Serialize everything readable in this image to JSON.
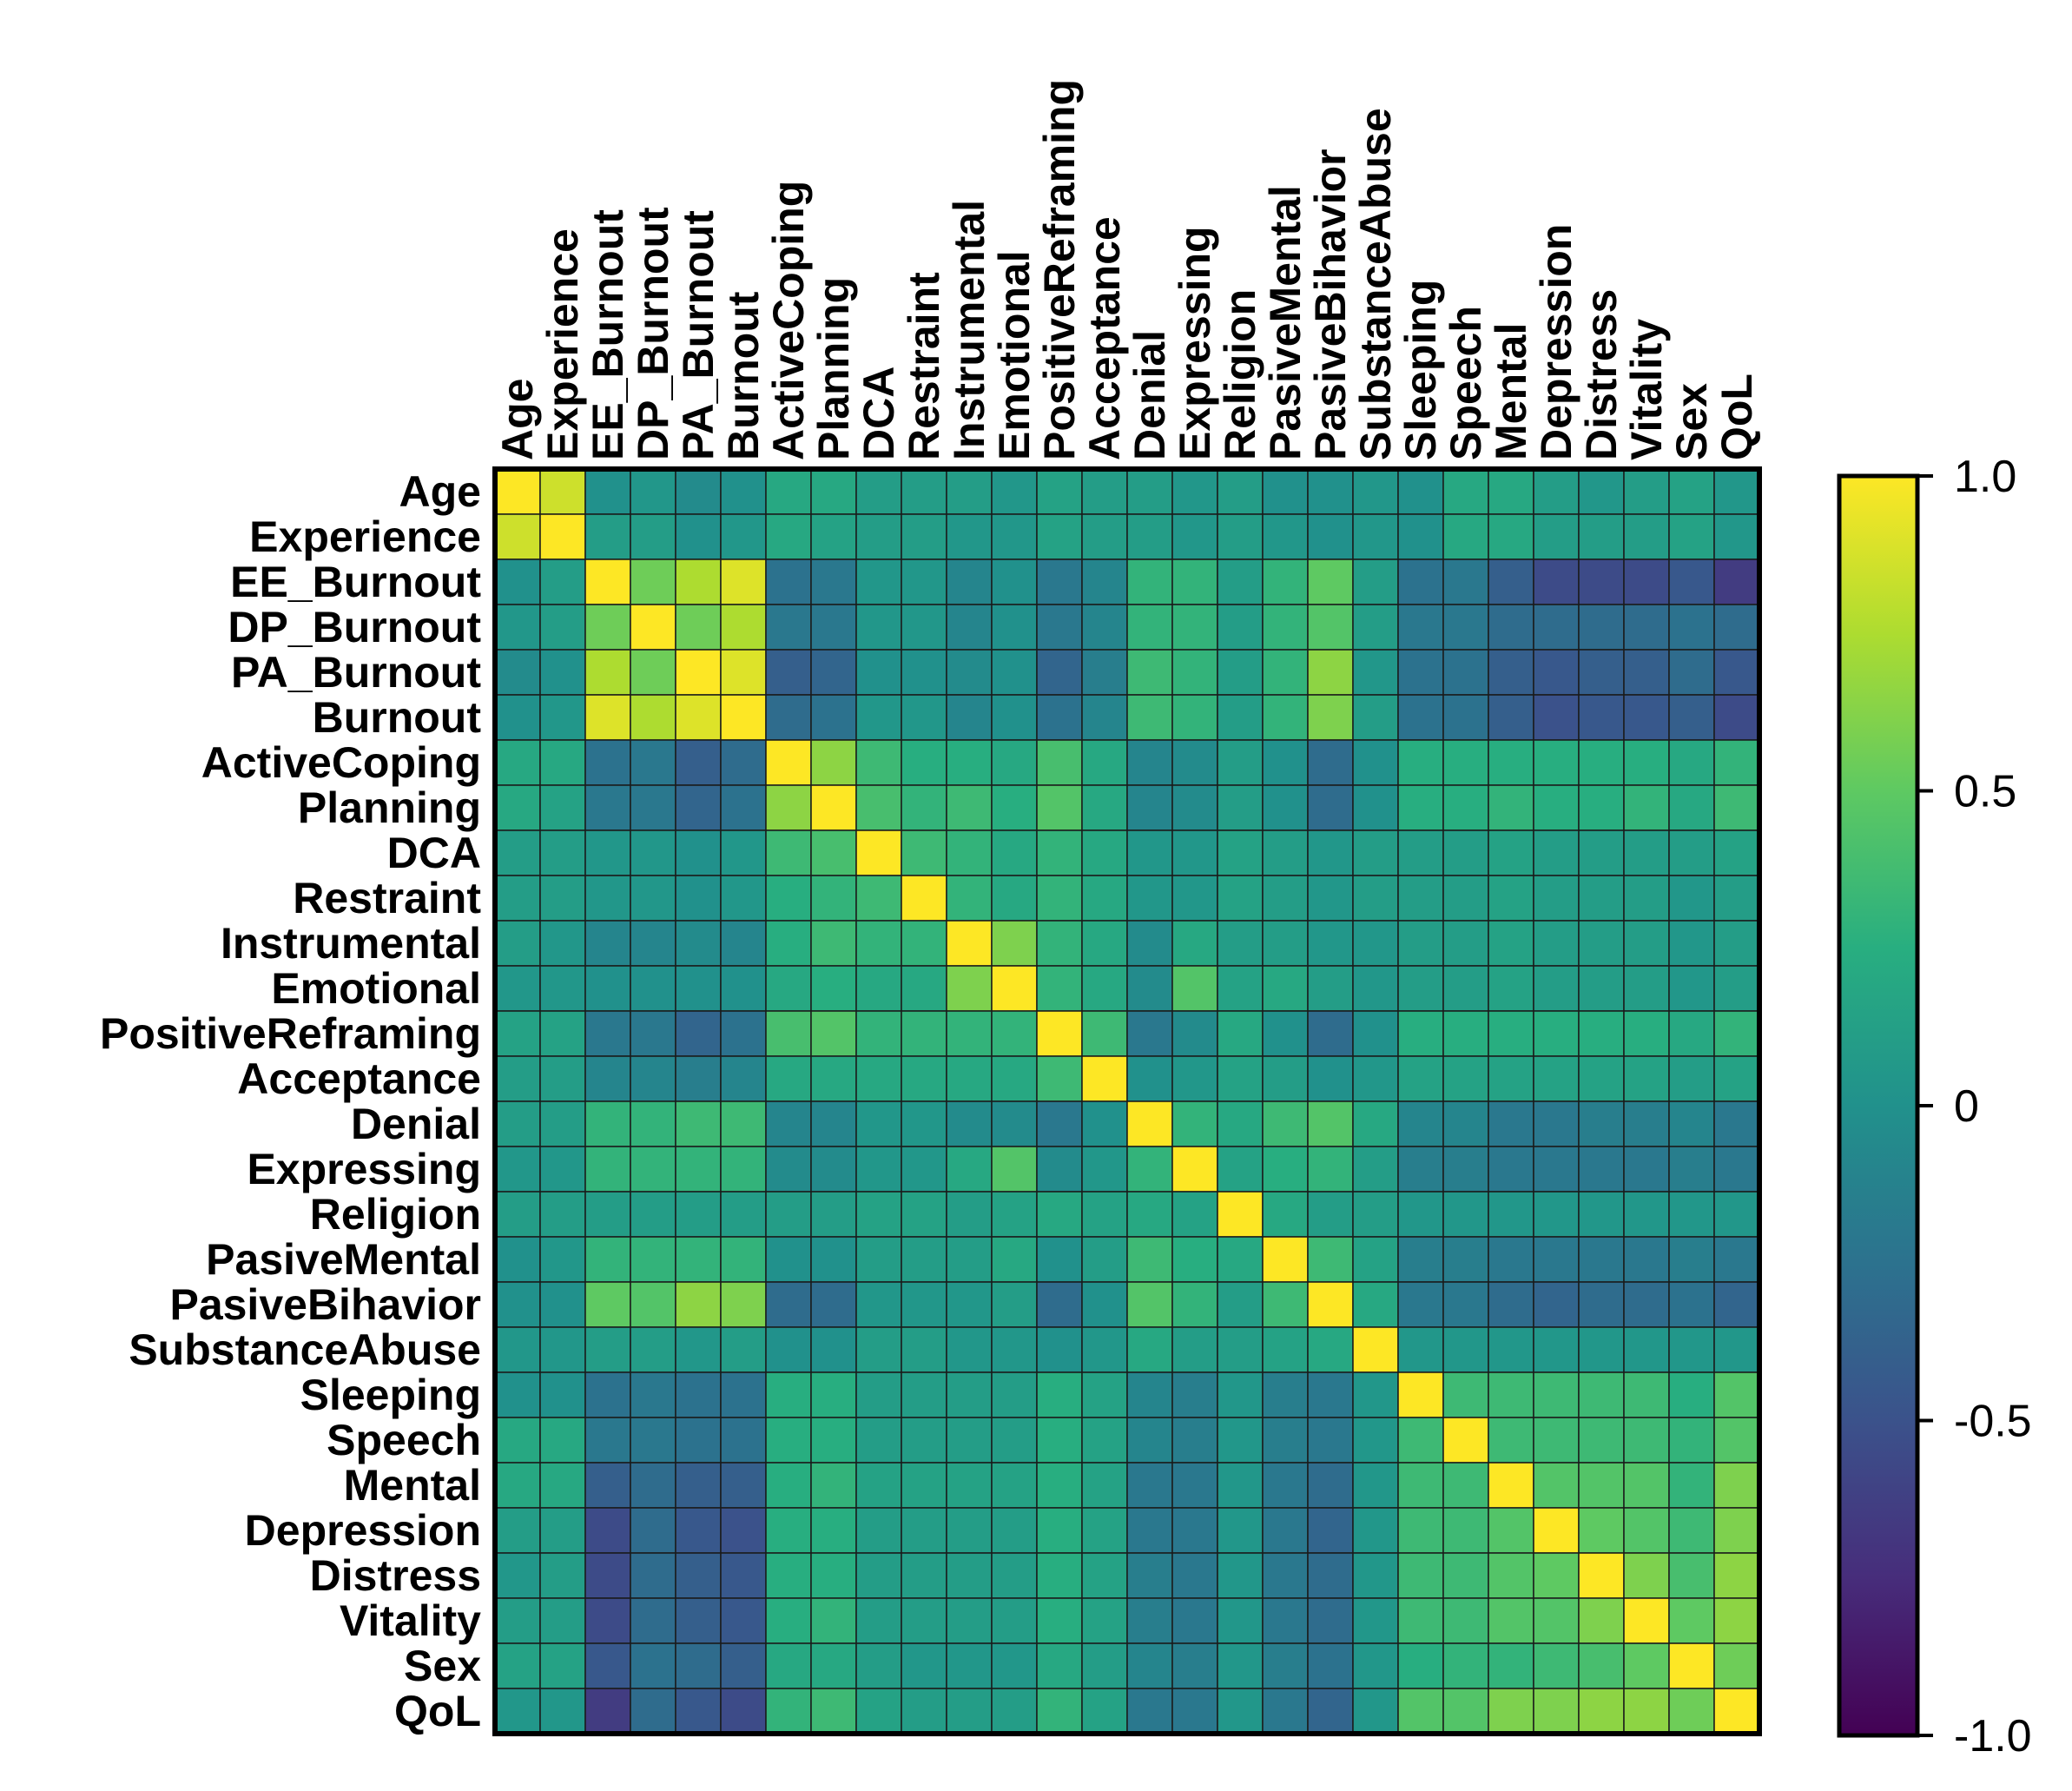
{
  "chart_data": {
    "type": "heatmap",
    "title": "",
    "labels": [
      "Age",
      "Experience",
      "EE_Burnout",
      "DP_Burnout",
      "PA_Burnout",
      "Burnout",
      "ActiveCoping",
      "Planning",
      "DCA",
      "Restraint",
      "Instrumental",
      "Emotional",
      "PositiveReframing",
      "Acceptance",
      "Denial",
      "Expressing",
      "Religion",
      "PasiveMental",
      "PasiveBihavior",
      "SubstanceAbuse",
      "Sleeping",
      "Speech",
      "Mental",
      "Depression",
      "Distress",
      "Vitality",
      "Sex",
      "QoL"
    ],
    "colorbar": {
      "min": -1.0,
      "max": 1.0,
      "ticks": [
        1.0,
        0.5,
        0,
        -0.5,
        -1.0
      ],
      "tick_labels": [
        "1.0",
        "0.5",
        "0",
        "-0.5",
        "-1.0"
      ]
    },
    "matrix": [
      [
        1,
        0.85,
        0,
        0.05,
        -0.05,
        0,
        0.2,
        0.2,
        0.1,
        0.1,
        0.1,
        0.05,
        0.15,
        0.1,
        0.1,
        0.05,
        0.1,
        0,
        0,
        0.05,
        0,
        0.2,
        0.2,
        0.1,
        0.05,
        0.1,
        0.15,
        0.05
      ],
      [
        0.85,
        1,
        0.1,
        0.1,
        0,
        0.05,
        0.2,
        0.15,
        0.1,
        0.1,
        0.05,
        0.05,
        0.15,
        0.1,
        0.1,
        0.05,
        0.1,
        0.05,
        0,
        0.05,
        0,
        0.2,
        0.2,
        0.1,
        0.1,
        0.1,
        0.15,
        0.05
      ],
      [
        0,
        0.1,
        1,
        0.55,
        0.75,
        0.9,
        -0.25,
        -0.2,
        0.05,
        0.05,
        -0.1,
        0,
        -0.2,
        -0.1,
        0.3,
        0.3,
        0.1,
        0.3,
        0.5,
        0.1,
        -0.25,
        -0.2,
        -0.4,
        -0.55,
        -0.55,
        -0.55,
        -0.45,
        -0.65
      ],
      [
        0.05,
        0.1,
        0.55,
        1,
        0.55,
        0.75,
        -0.2,
        -0.2,
        0.05,
        0.05,
        -0.1,
        0,
        -0.2,
        -0.1,
        0.3,
        0.3,
        0.1,
        0.3,
        0.45,
        0.1,
        -0.2,
        -0.2,
        -0.3,
        -0.3,
        -0.3,
        -0.3,
        -0.25,
        -0.3
      ],
      [
        -0.05,
        0,
        0.75,
        0.55,
        1,
        0.9,
        -0.4,
        -0.35,
        0,
        0,
        -0.05,
        0,
        -0.35,
        -0.15,
        0.35,
        0.3,
        0.1,
        0.3,
        0.65,
        0.05,
        -0.25,
        -0.25,
        -0.4,
        -0.45,
        -0.4,
        -0.4,
        -0.3,
        -0.45
      ],
      [
        0,
        0.05,
        0.9,
        0.75,
        0.9,
        1,
        -0.3,
        -0.25,
        0.05,
        0.05,
        -0.1,
        0,
        -0.25,
        -0.1,
        0.35,
        0.3,
        0.1,
        0.3,
        0.6,
        0.1,
        -0.25,
        -0.25,
        -0.4,
        -0.5,
        -0.45,
        -0.45,
        -0.4,
        -0.55
      ],
      [
        0.2,
        0.2,
        -0.25,
        -0.2,
        -0.4,
        -0.3,
        1,
        0.65,
        0.35,
        0.25,
        0.25,
        0.2,
        0.4,
        0.2,
        -0.1,
        -0.05,
        0.1,
        0,
        -0.3,
        0,
        0.25,
        0.25,
        0.25,
        0.25,
        0.25,
        0.25,
        0.2,
        0.3
      ],
      [
        0.2,
        0.15,
        -0.2,
        -0.2,
        -0.35,
        -0.25,
        0.65,
        1,
        0.4,
        0.3,
        0.35,
        0.25,
        0.45,
        0.2,
        -0.1,
        -0.05,
        0.1,
        0,
        -0.3,
        0,
        0.25,
        0.25,
        0.3,
        0.25,
        0.25,
        0.3,
        0.2,
        0.35
      ],
      [
        0.1,
        0.1,
        0.05,
        0.05,
        0,
        0.05,
        0.35,
        0.4,
        1,
        0.35,
        0.3,
        0.2,
        0.3,
        0.2,
        0.05,
        0.05,
        0.15,
        0.1,
        0.05,
        0.1,
        0.1,
        0.1,
        0.15,
        0.1,
        0.1,
        0.1,
        0.1,
        0.15
      ],
      [
        0.1,
        0.1,
        0.05,
        0.05,
        0,
        0.05,
        0.25,
        0.3,
        0.35,
        1,
        0.3,
        0.2,
        0.3,
        0.2,
        0.05,
        0.05,
        0.15,
        0.1,
        0.05,
        0.1,
        0.1,
        0.1,
        0.15,
        0.1,
        0.1,
        0.1,
        0.05,
        0.1
      ],
      [
        0.1,
        0.05,
        -0.1,
        -0.1,
        -0.05,
        -0.1,
        0.25,
        0.35,
        0.3,
        0.3,
        1,
        0.6,
        0.3,
        0.2,
        -0.05,
        0.2,
        0.1,
        0.1,
        0.05,
        0.05,
        0.1,
        0.1,
        0.15,
        0.1,
        0.1,
        0.1,
        0.05,
        0.1
      ],
      [
        0.05,
        0.05,
        0,
        0,
        0,
        0,
        0.2,
        0.25,
        0.2,
        0.2,
        0.6,
        1,
        0.3,
        0.2,
        -0.05,
        0.45,
        0.15,
        0.2,
        0.1,
        0.05,
        0.1,
        0.1,
        0.15,
        0.1,
        0.1,
        0.1,
        0.05,
        0.1
      ],
      [
        0.15,
        0.15,
        -0.2,
        -0.2,
        -0.35,
        -0.25,
        0.4,
        0.45,
        0.3,
        0.3,
        0.3,
        0.3,
        1,
        0.35,
        -0.2,
        -0.05,
        0.2,
        0,
        -0.3,
        0,
        0.25,
        0.25,
        0.25,
        0.25,
        0.25,
        0.25,
        0.2,
        0.3
      ],
      [
        0.1,
        0.1,
        -0.1,
        -0.1,
        -0.15,
        -0.1,
        0.2,
        0.2,
        0.2,
        0.2,
        0.2,
        0.2,
        0.35,
        1,
        0,
        0.05,
        0.15,
        0.1,
        0,
        0.05,
        0.15,
        0.15,
        0.15,
        0.15,
        0.15,
        0.15,
        0.1,
        0.15
      ],
      [
        0.1,
        0.1,
        0.3,
        0.3,
        0.35,
        0.35,
        -0.1,
        -0.1,
        0.05,
        0.05,
        -0.05,
        -0.05,
        -0.2,
        0,
        1,
        0.3,
        0.2,
        0.35,
        0.45,
        0.2,
        -0.1,
        -0.1,
        -0.2,
        -0.2,
        -0.15,
        -0.15,
        -0.1,
        -0.2
      ],
      [
        0.05,
        0.05,
        0.3,
        0.3,
        0.3,
        0.3,
        -0.05,
        -0.05,
        0.05,
        0.05,
        0.2,
        0.45,
        -0.05,
        0.05,
        0.3,
        1,
        0.15,
        0.25,
        0.3,
        0.1,
        -0.15,
        -0.15,
        -0.2,
        -0.2,
        -0.2,
        -0.2,
        -0.15,
        -0.2
      ],
      [
        0.1,
        0.1,
        0.1,
        0.1,
        0.1,
        0.1,
        0.1,
        0.1,
        0.15,
        0.15,
        0.1,
        0.15,
        0.2,
        0.15,
        0.2,
        0.15,
        1,
        0.2,
        0.1,
        0.1,
        0.05,
        0.05,
        0.05,
        0.05,
        0.05,
        0.05,
        0.05,
        0.05
      ],
      [
        0,
        0.05,
        0.3,
        0.3,
        0.3,
        0.3,
        0,
        0,
        0.1,
        0.1,
        0.1,
        0.2,
        0,
        0.1,
        0.35,
        0.25,
        0.2,
        1,
        0.35,
        0.15,
        -0.15,
        -0.15,
        -0.2,
        -0.2,
        -0.2,
        -0.2,
        -0.15,
        -0.2
      ],
      [
        0,
        0,
        0.5,
        0.45,
        0.65,
        0.6,
        -0.3,
        -0.3,
        0.05,
        0.05,
        0.05,
        0.1,
        -0.3,
        0,
        0.45,
        0.3,
        0.1,
        0.35,
        1,
        0.2,
        -0.2,
        -0.2,
        -0.3,
        -0.35,
        -0.3,
        -0.3,
        -0.25,
        -0.35
      ],
      [
        0.05,
        0.05,
        0.1,
        0.1,
        0.05,
        0.1,
        0,
        0,
        0.1,
        0.1,
        0.05,
        0.05,
        0,
        0.05,
        0.2,
        0.1,
        0.1,
        0.15,
        0.2,
        1,
        0.05,
        0.05,
        0.05,
        0.05,
        0.05,
        0.05,
        0.05,
        0.05
      ],
      [
        0,
        0,
        -0.25,
        -0.2,
        -0.25,
        -0.25,
        0.25,
        0.25,
        0.1,
        0.1,
        0.1,
        0.1,
        0.25,
        0.15,
        -0.1,
        -0.15,
        0.05,
        -0.15,
        -0.2,
        0.05,
        1,
        0.35,
        0.35,
        0.35,
        0.35,
        0.35,
        0.25,
        0.45
      ],
      [
        0.2,
        0.2,
        -0.2,
        -0.2,
        -0.25,
        -0.25,
        0.25,
        0.25,
        0.1,
        0.1,
        0.1,
        0.1,
        0.25,
        0.15,
        -0.1,
        -0.15,
        0.05,
        -0.15,
        -0.2,
        0.05,
        0.35,
        1,
        0.35,
        0.35,
        0.35,
        0.35,
        0.3,
        0.45
      ],
      [
        0.2,
        0.2,
        -0.4,
        -0.3,
        -0.4,
        -0.4,
        0.25,
        0.3,
        0.15,
        0.15,
        0.15,
        0.15,
        0.25,
        0.15,
        -0.2,
        -0.2,
        0.05,
        -0.2,
        -0.3,
        0.05,
        0.35,
        0.35,
        1,
        0.45,
        0.45,
        0.45,
        0.3,
        0.6
      ],
      [
        0.1,
        0.1,
        -0.55,
        -0.3,
        -0.45,
        -0.5,
        0.25,
        0.25,
        0.1,
        0.1,
        0.1,
        0.1,
        0.25,
        0.15,
        -0.2,
        -0.2,
        0.05,
        -0.2,
        -0.35,
        0.05,
        0.35,
        0.35,
        0.45,
        1,
        0.5,
        0.45,
        0.35,
        0.6
      ],
      [
        0.05,
        0.1,
        -0.55,
        -0.3,
        -0.4,
        -0.45,
        0.25,
        0.25,
        0.1,
        0.1,
        0.1,
        0.1,
        0.25,
        0.15,
        -0.15,
        -0.2,
        0.05,
        -0.2,
        -0.3,
        0.05,
        0.35,
        0.35,
        0.45,
        0.5,
        1,
        0.6,
        0.4,
        0.65
      ],
      [
        0.1,
        0.1,
        -0.55,
        -0.3,
        -0.4,
        -0.45,
        0.25,
        0.3,
        0.1,
        0.1,
        0.1,
        0.1,
        0.25,
        0.15,
        -0.15,
        -0.2,
        0.05,
        -0.2,
        -0.3,
        0.05,
        0.35,
        0.35,
        0.45,
        0.45,
        0.6,
        1,
        0.5,
        0.65
      ],
      [
        0.15,
        0.15,
        -0.45,
        -0.25,
        -0.3,
        -0.4,
        0.2,
        0.2,
        0.1,
        0.05,
        0.05,
        0.05,
        0.2,
        0.1,
        -0.1,
        -0.15,
        0.05,
        -0.15,
        -0.25,
        0.05,
        0.25,
        0.3,
        0.3,
        0.35,
        0.4,
        0.5,
        1,
        0.55
      ],
      [
        0.05,
        0.05,
        -0.65,
        -0.3,
        -0.45,
        -0.55,
        0.3,
        0.35,
        0.15,
        0.1,
        0.1,
        0.1,
        0.3,
        0.15,
        -0.2,
        -0.2,
        0.05,
        -0.2,
        -0.35,
        0.05,
        0.45,
        0.45,
        0.6,
        0.6,
        0.65,
        0.65,
        0.55,
        1
      ]
    ]
  }
}
